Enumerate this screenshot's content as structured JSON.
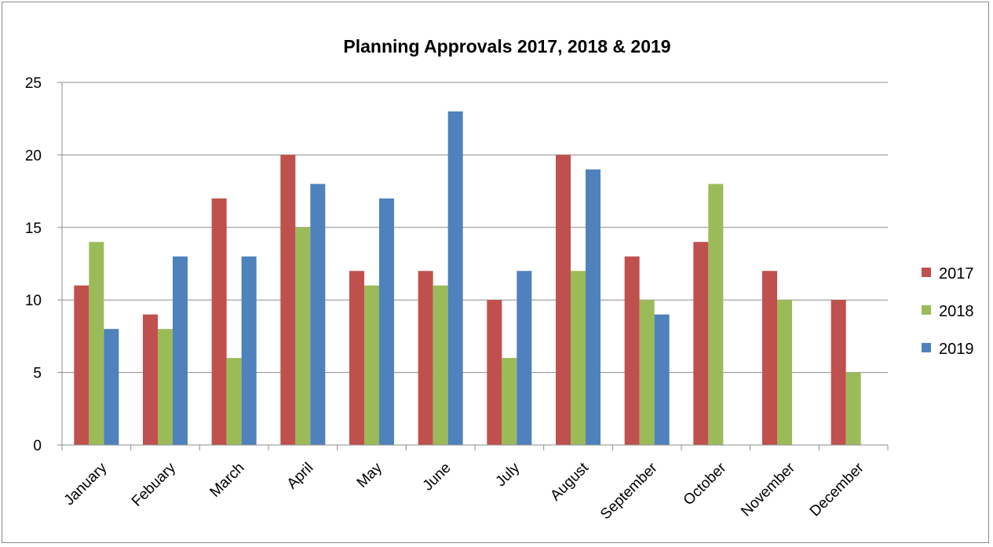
{
  "chart_data": {
    "type": "bar",
    "title": "Planning Approvals 2017, 2018 & 2019",
    "categories": [
      "January",
      "Febuary",
      "March",
      "April",
      "May",
      "June",
      "July",
      "August",
      "September",
      "October",
      "November",
      "December"
    ],
    "series": [
      {
        "name": "2017",
        "color": "#c0504d",
        "values": [
          11,
          9,
          17,
          20,
          12,
          12,
          10,
          20,
          13,
          14,
          12,
          10
        ]
      },
      {
        "name": "2018",
        "color": "#9bbb59",
        "values": [
          14,
          8,
          6,
          15,
          11,
          11,
          6,
          12,
          10,
          18,
          10,
          5
        ]
      },
      {
        "name": "2019",
        "color": "#4f81bd",
        "values": [
          8,
          13,
          13,
          18,
          17,
          23,
          12,
          19,
          9,
          null,
          null,
          null
        ]
      }
    ],
    "ylim": [
      0,
      25
    ],
    "yticks": [
      0,
      5,
      10,
      15,
      20,
      25
    ],
    "grid": true,
    "legend_position": "right"
  }
}
